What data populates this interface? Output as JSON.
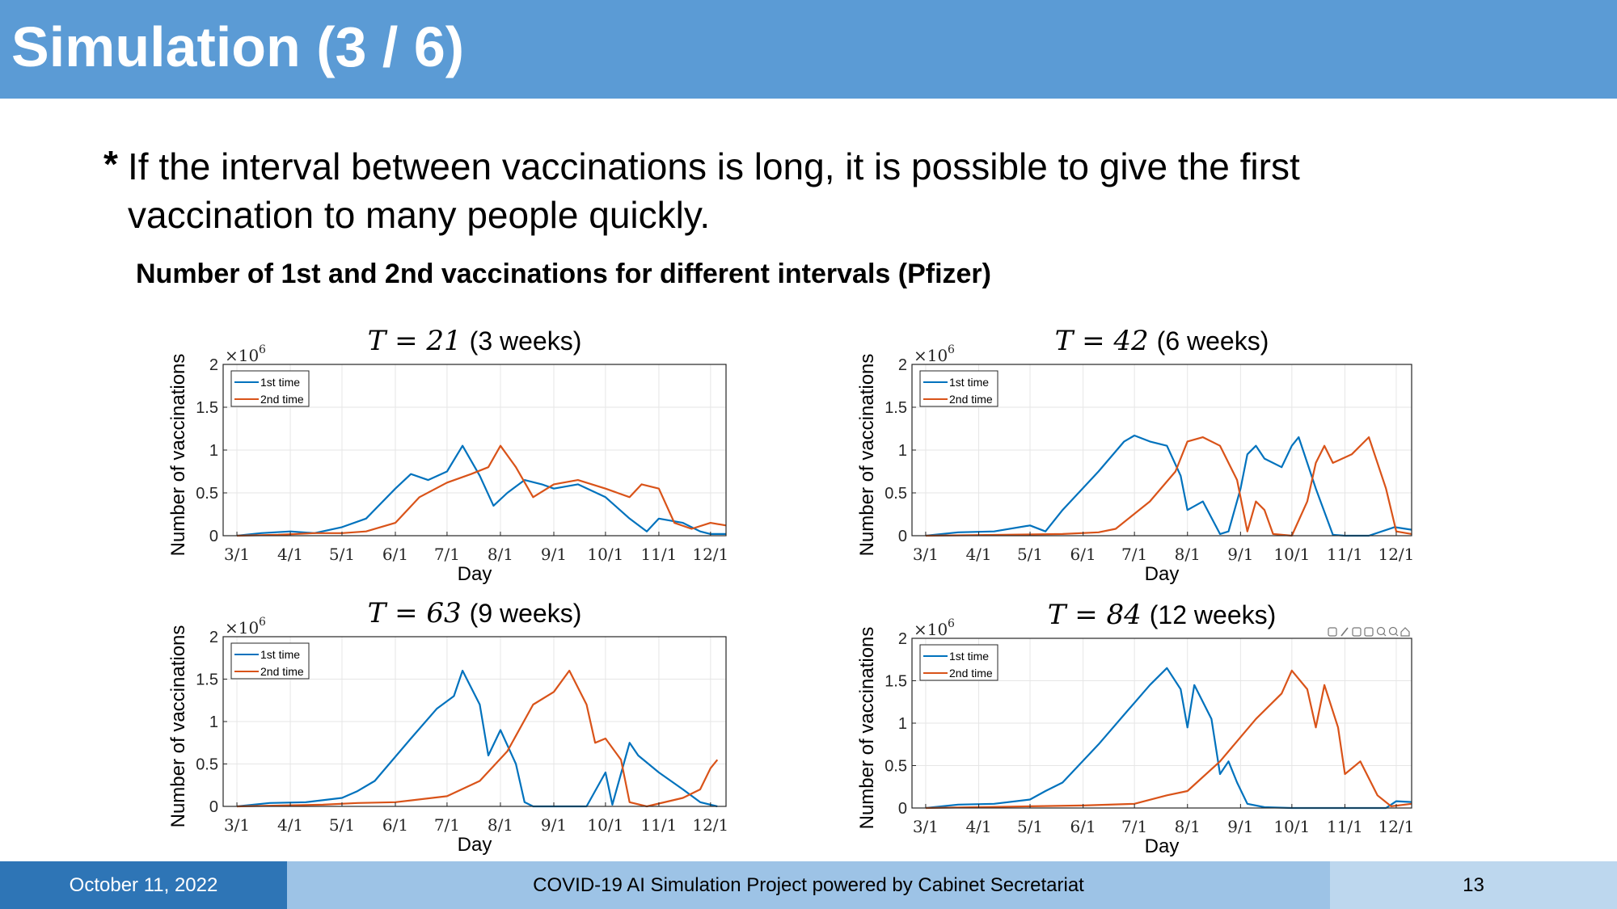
{
  "header": {
    "title": "Simulation (3 / 6)"
  },
  "bullet": {
    "marker": "*",
    "text": "If the interval between vaccinations is long, it is possible to give the first vaccination to many people quickly."
  },
  "figure": {
    "title": "Number of 1st and 2nd vaccinations for different intervals (Pfizer)"
  },
  "footer": {
    "date": "October 11, 2022",
    "project": "COVID-19 AI Simulation Project powered by Cabinet Secretariat",
    "page": "13"
  },
  "colors": {
    "first": "#0072bd",
    "second": "#d95319",
    "header_bg": "#5b9bd5"
  },
  "toolbar_icons": [
    "export-icon",
    "brush-icon",
    "datatip-icon",
    "pan-icon",
    "zoom-in-icon",
    "zoom-out-icon",
    "home-icon"
  ],
  "chart_data": [
    {
      "type": "line",
      "title_math": "T = 21",
      "title_paren": "(3 weeks)",
      "xlabel": "Day",
      "ylabel": "Number of vaccinations",
      "multiplier": "×10",
      "multiplier_exp": "6",
      "xticks": [
        "3/1",
        "4/1",
        "5/1",
        "6/1",
        "7/1",
        "8/1",
        "9/1",
        "10/1",
        "11/1",
        "12/1"
      ],
      "xlim": [
        "3/1",
        "12/1"
      ],
      "ylim": [
        0,
        2
      ],
      "yticks": [
        "0",
        "0.5",
        "1",
        "1.5",
        "2"
      ],
      "grid": true,
      "legend_position": "top-left",
      "series": [
        {
          "name": "1st time",
          "points": [
            [
              "3/1",
              0
            ],
            [
              "3/15",
              0.03
            ],
            [
              "4/1",
              0.05
            ],
            [
              "4/15",
              0.03
            ],
            [
              "5/1",
              0.1
            ],
            [
              "5/15",
              0.2
            ],
            [
              "6/1",
              0.55
            ],
            [
              "6/10",
              0.72
            ],
            [
              "6/20",
              0.65
            ],
            [
              "7/1",
              0.75
            ],
            [
              "7/10",
              1.05
            ],
            [
              "7/20",
              0.7
            ],
            [
              "7/28",
              0.35
            ],
            [
              "8/5",
              0.5
            ],
            [
              "8/15",
              0.65
            ],
            [
              "8/25",
              0.6
            ],
            [
              "9/1",
              0.55
            ],
            [
              "9/15",
              0.6
            ],
            [
              "10/1",
              0.45
            ],
            [
              "10/15",
              0.2
            ],
            [
              "10/25",
              0.05
            ],
            [
              "11/1",
              0.2
            ],
            [
              "11/15",
              0.15
            ],
            [
              "11/25",
              0.05
            ],
            [
              "12/1",
              0.02
            ],
            [
              "12/10",
              0.02
            ]
          ]
        },
        {
          "name": "2nd time",
          "points": [
            [
              "3/1",
              0
            ],
            [
              "3/25",
              0.01
            ],
            [
              "4/15",
              0.03
            ],
            [
              "5/1",
              0.03
            ],
            [
              "5/15",
              0.05
            ],
            [
              "6/1",
              0.15
            ],
            [
              "6/15",
              0.45
            ],
            [
              "7/1",
              0.62
            ],
            [
              "7/15",
              0.72
            ],
            [
              "7/25",
              0.8
            ],
            [
              "8/1",
              1.05
            ],
            [
              "8/10",
              0.8
            ],
            [
              "8/20",
              0.45
            ],
            [
              "9/1",
              0.6
            ],
            [
              "9/15",
              0.65
            ],
            [
              "10/1",
              0.55
            ],
            [
              "10/15",
              0.45
            ],
            [
              "10/22",
              0.6
            ],
            [
              "11/1",
              0.55
            ],
            [
              "11/10",
              0.15
            ],
            [
              "11/20",
              0.08
            ],
            [
              "12/1",
              0.15
            ],
            [
              "12/10",
              0.12
            ]
          ]
        }
      ]
    },
    {
      "type": "line",
      "title_math": "T = 42",
      "title_paren": "(6 weeks)",
      "xlabel": "Day",
      "ylabel": "Number of vaccinations",
      "multiplier": "×10",
      "multiplier_exp": "6",
      "xticks": [
        "3/1",
        "4/1",
        "5/1",
        "6/1",
        "7/1",
        "8/1",
        "9/1",
        "10/1",
        "11/1",
        "12/1"
      ],
      "xlim": [
        "3/1",
        "12/1"
      ],
      "ylim": [
        0,
        2
      ],
      "yticks": [
        "0",
        "0.5",
        "1",
        "1.5",
        "2"
      ],
      "grid": true,
      "legend_position": "top-left",
      "series": [
        {
          "name": "1st time",
          "points": [
            [
              "3/1",
              0
            ],
            [
              "3/20",
              0.04
            ],
            [
              "4/10",
              0.05
            ],
            [
              "5/1",
              0.12
            ],
            [
              "5/10",
              0.05
            ],
            [
              "5/20",
              0.3
            ],
            [
              "6/10",
              0.75
            ],
            [
              "6/25",
              1.1
            ],
            [
              "7/1",
              1.17
            ],
            [
              "7/10",
              1.1
            ],
            [
              "7/20",
              1.05
            ],
            [
              "7/28",
              0.7
            ],
            [
              "8/1",
              0.3
            ],
            [
              "8/10",
              0.4
            ],
            [
              "8/20",
              0.02
            ],
            [
              "8/25",
              0.05
            ],
            [
              "9/1",
              0.55
            ],
            [
              "9/5",
              0.95
            ],
            [
              "9/10",
              1.05
            ],
            [
              "9/15",
              0.9
            ],
            [
              "9/25",
              0.8
            ],
            [
              "10/1",
              1.05
            ],
            [
              "10/5",
              1.15
            ],
            [
              "10/15",
              0.55
            ],
            [
              "10/25",
              0.01
            ],
            [
              "11/1",
              0
            ],
            [
              "11/15",
              0
            ],
            [
              "11/30",
              0.1
            ],
            [
              "12/10",
              0.07
            ]
          ]
        },
        {
          "name": "2nd time",
          "points": [
            [
              "3/1",
              0
            ],
            [
              "4/15",
              0.01
            ],
            [
              "5/20",
              0.02
            ],
            [
              "6/10",
              0.04
            ],
            [
              "6/20",
              0.08
            ],
            [
              "7/10",
              0.4
            ],
            [
              "7/25",
              0.75
            ],
            [
              "8/1",
              1.1
            ],
            [
              "8/10",
              1.15
            ],
            [
              "8/20",
              1.05
            ],
            [
              "8/30",
              0.65
            ],
            [
              "9/5",
              0.05
            ],
            [
              "9/10",
              0.4
            ],
            [
              "9/15",
              0.3
            ],
            [
              "9/20",
              0.02
            ],
            [
              "10/1",
              0
            ],
            [
              "10/10",
              0.4
            ],
            [
              "10/15",
              0.85
            ],
            [
              "10/20",
              1.05
            ],
            [
              "10/25",
              0.85
            ],
            [
              "11/5",
              0.95
            ],
            [
              "11/15",
              1.15
            ],
            [
              "11/25",
              0.55
            ],
            [
              "12/1",
              0.05
            ],
            [
              "12/10",
              0.02
            ]
          ]
        }
      ]
    },
    {
      "type": "line",
      "title_math": "T = 63",
      "title_paren": "(9 weeks)",
      "xlabel": "Day",
      "ylabel": "Number of vaccinations",
      "multiplier": "×10",
      "multiplier_exp": "6",
      "xticks": [
        "3/1",
        "4/1",
        "5/1",
        "6/1",
        "7/1",
        "8/1",
        "9/1",
        "10/1",
        "11/1",
        "12/1"
      ],
      "xlim": [
        "3/1",
        "12/1"
      ],
      "ylim": [
        0,
        2
      ],
      "yticks": [
        "0",
        "0.5",
        "1",
        "1.5",
        "2"
      ],
      "grid": true,
      "legend_position": "top-left",
      "series": [
        {
          "name": "1st time",
          "points": [
            [
              "3/1",
              0
            ],
            [
              "3/20",
              0.04
            ],
            [
              "4/10",
              0.05
            ],
            [
              "5/1",
              0.1
            ],
            [
              "5/10",
              0.18
            ],
            [
              "5/20",
              0.3
            ],
            [
              "6/10",
              0.8
            ],
            [
              "6/25",
              1.15
            ],
            [
              "7/5",
              1.3
            ],
            [
              "7/10",
              1.6
            ],
            [
              "7/20",
              1.2
            ],
            [
              "7/25",
              0.6
            ],
            [
              "8/1",
              0.9
            ],
            [
              "8/10",
              0.5
            ],
            [
              "8/15",
              0.05
            ],
            [
              "8/20",
              0
            ],
            [
              "9/20",
              0
            ],
            [
              "10/1",
              0.4
            ],
            [
              "10/5",
              0.02
            ],
            [
              "10/15",
              0.75
            ],
            [
              "10/20",
              0.6
            ],
            [
              "11/1",
              0.4
            ],
            [
              "11/15",
              0.2
            ],
            [
              "11/25",
              0.05
            ],
            [
              "12/5",
              0
            ]
          ]
        },
        {
          "name": "2nd time",
          "points": [
            [
              "3/1",
              0
            ],
            [
              "4/20",
              0.02
            ],
            [
              "5/10",
              0.04
            ],
            [
              "6/1",
              0.05
            ],
            [
              "7/1",
              0.12
            ],
            [
              "7/20",
              0.3
            ],
            [
              "8/5",
              0.65
            ],
            [
              "8/20",
              1.2
            ],
            [
              "9/1",
              1.35
            ],
            [
              "9/10",
              1.6
            ],
            [
              "9/20",
              1.2
            ],
            [
              "9/25",
              0.75
            ],
            [
              "10/1",
              0.8
            ],
            [
              "10/10",
              0.55
            ],
            [
              "10/15",
              0.05
            ],
            [
              "10/25",
              0
            ],
            [
              "11/15",
              0.1
            ],
            [
              "11/25",
              0.2
            ],
            [
              "12/1",
              0.45
            ],
            [
              "12/5",
              0.55
            ]
          ]
        }
      ]
    },
    {
      "type": "line",
      "title_math": "T = 84",
      "title_paren": "(12 weeks)",
      "xlabel": "Day",
      "ylabel": "Number of vaccinations",
      "multiplier": "×10",
      "multiplier_exp": "6",
      "xticks": [
        "3/1",
        "4/1",
        "5/1",
        "6/1",
        "7/1",
        "8/1",
        "9/1",
        "10/1",
        "11/1",
        "12/1"
      ],
      "xlim": [
        "3/1",
        "12/1"
      ],
      "ylim": [
        0,
        2
      ],
      "yticks": [
        "0",
        "0.5",
        "1",
        "1.5",
        "2"
      ],
      "grid": true,
      "legend_position": "top-left",
      "series": [
        {
          "name": "1st time",
          "points": [
            [
              "3/1",
              0
            ],
            [
              "3/20",
              0.04
            ],
            [
              "4/10",
              0.05
            ],
            [
              "5/1",
              0.1
            ],
            [
              "5/10",
              0.2
            ],
            [
              "5/20",
              0.3
            ],
            [
              "6/10",
              0.75
            ],
            [
              "6/25",
              1.1
            ],
            [
              "7/10",
              1.45
            ],
            [
              "7/20",
              1.65
            ],
            [
              "7/28",
              1.4
            ],
            [
              "8/1",
              0.95
            ],
            [
              "8/5",
              1.45
            ],
            [
              "8/15",
              1.05
            ],
            [
              "8/20",
              0.4
            ],
            [
              "8/25",
              0.55
            ],
            [
              "8/30",
              0.3
            ],
            [
              "9/5",
              0.05
            ],
            [
              "9/15",
              0.01
            ],
            [
              "10/1",
              0
            ],
            [
              "11/25",
              0
            ],
            [
              "12/1",
              0.08
            ],
            [
              "12/10",
              0.07
            ]
          ]
        },
        {
          "name": "2nd time",
          "points": [
            [
              "3/1",
              0
            ],
            [
              "5/1",
              0.02
            ],
            [
              "6/1",
              0.03
            ],
            [
              "7/1",
              0.05
            ],
            [
              "7/20",
              0.15
            ],
            [
              "8/1",
              0.2
            ],
            [
              "8/20",
              0.55
            ],
            [
              "9/10",
              1.05
            ],
            [
              "9/25",
              1.35
            ],
            [
              "10/1",
              1.62
            ],
            [
              "10/10",
              1.4
            ],
            [
              "10/15",
              0.95
            ],
            [
              "10/20",
              1.45
            ],
            [
              "10/28",
              0.95
            ],
            [
              "11/1",
              0.4
            ],
            [
              "11/10",
              0.55
            ],
            [
              "11/20",
              0.15
            ],
            [
              "11/28",
              0.02
            ],
            [
              "12/10",
              0.05
            ]
          ]
        }
      ]
    }
  ]
}
